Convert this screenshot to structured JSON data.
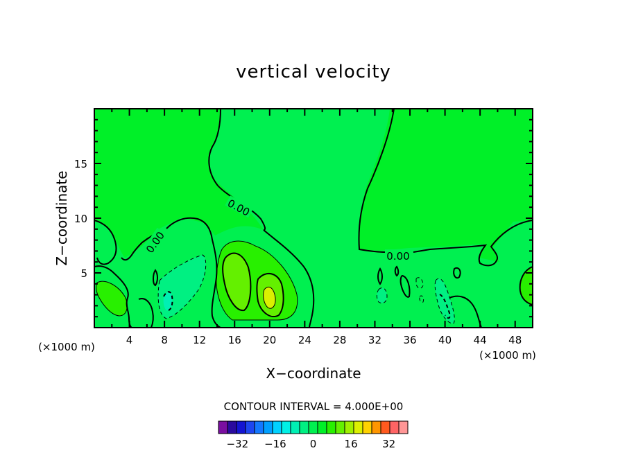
{
  "chart_data": {
    "type": "contour",
    "title": "vertical velocity",
    "xlabel": "X−coordinate",
    "ylabel": "Z−coordinate",
    "x_unit_label": "(×1000 m)",
    "y_unit_label": "(×1000 m)",
    "xlim": [
      0,
      50
    ],
    "ylim": [
      0,
      20
    ],
    "x_ticks": [
      4,
      8,
      12,
      16,
      20,
      24,
      28,
      32,
      36,
      40,
      44,
      48
    ],
    "y_ticks": [
      5,
      10,
      15
    ],
    "contour_labels": [
      "0.00",
      "0.00",
      "0.00"
    ],
    "contour_interval_text": "CONTOUR INTERVAL = 4.000E+00",
    "colorbar": {
      "tick_labels": [
        "−32",
        "−16",
        "0",
        "16",
        "32"
      ],
      "tick_values": [
        -32,
        -16,
        0,
        16,
        32
      ],
      "levels": [
        -40,
        -36,
        -32,
        -28,
        -24,
        -20,
        -16,
        -12,
        -8,
        -4,
        0,
        4,
        8,
        12,
        16,
        20,
        24,
        28,
        32,
        36,
        40
      ],
      "colors": [
        "#7a0fa0",
        "#2a0a9e",
        "#1414d2",
        "#1e46f0",
        "#1478ff",
        "#00a0ff",
        "#00d2ff",
        "#00f0e6",
        "#00f0b4",
        "#00f082",
        "#00f050",
        "#00f028",
        "#28f000",
        "#64f000",
        "#a0f000",
        "#dcf000",
        "#ffd200",
        "#ff9600",
        "#ff5a1e",
        "#ff6464",
        "#ff9696"
      ]
    },
    "features": [
      {
        "kind": "updraft",
        "x_center": 19,
        "z_center": 3.5,
        "max_value": 16
      },
      {
        "kind": "updraft",
        "x_center": 2,
        "z_center": 3,
        "max_value": 8
      },
      {
        "kind": "downdraft",
        "x_center": 9.5,
        "z_center": 3.5,
        "min_value": -8
      },
      {
        "kind": "downdraft",
        "x_center": 40,
        "z_center": 2.5,
        "min_value": -8
      }
    ],
    "background_color": "#00f028"
  }
}
